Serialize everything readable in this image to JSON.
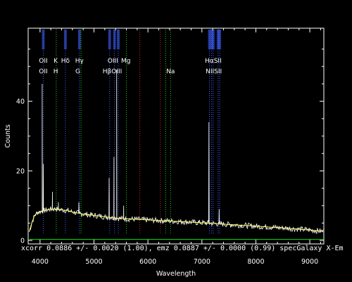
{
  "chart_data": {
    "type": "line",
    "xlabel": "Wavelength",
    "ylabel": "Counts",
    "xlim": [
      3780,
      9260
    ],
    "ylim": [
      -1,
      61
    ],
    "x_ticks": [
      4000,
      5000,
      6000,
      7000,
      8000,
      9000
    ],
    "y_ticks": [
      0,
      20,
      40
    ],
    "grid": false,
    "status_line": "xcorr  0.0886 +/- 0.0020 (1.00), emz  0.0887 +/- 0.0000 (0.99) specGalaxy X-Em",
    "colors": {
      "background": "#000000",
      "spectrum": "#ffffff",
      "model": "#ffff66",
      "noise": "#00cc00",
      "line_marker_blue": "#4060ff",
      "line_marker_green": "#22cc22",
      "line_marker_red": "#cc2222"
    },
    "line_labels_top": [
      {
        "label": "OII",
        "x": 4060
      },
      {
        "label": "K",
        "x": 4290
      },
      {
        "label": "Hδ",
        "x": 4470
      },
      {
        "label": "Hγ",
        "x": 4730
      },
      {
        "label": "OIII",
        "x": 5350
      },
      {
        "label": "Mg",
        "x": 5590
      },
      {
        "label": "HαSII",
        "x": 7210
      }
    ],
    "line_labels_bottom": [
      {
        "label": "OII",
        "x": 4060
      },
      {
        "label": "H",
        "x": 4290
      },
      {
        "label": "G",
        "x": 4700
      },
      {
        "label": "HβOIII",
        "x": 5340
      },
      {
        "label": "Na",
        "x": 6420
      },
      {
        "label": "NIISII",
        "x": 7220
      }
    ],
    "marker_lines": [
      {
        "x": 4060,
        "color": "blue"
      },
      {
        "x": 4300,
        "color": "green"
      },
      {
        "x": 4470,
        "color": "blue"
      },
      {
        "x": 4730,
        "color": "blue"
      },
      {
        "x": 4760,
        "color": "green"
      },
      {
        "x": 5290,
        "color": "blue"
      },
      {
        "x": 5380,
        "color": "blue"
      },
      {
        "x": 5450,
        "color": "blue"
      },
      {
        "x": 5600,
        "color": "green"
      },
      {
        "x": 5850,
        "color": "red"
      },
      {
        "x": 6230,
        "color": "red"
      },
      {
        "x": 6330,
        "color": "green"
      },
      {
        "x": 6420,
        "color": "green"
      },
      {
        "x": 7140,
        "color": "blue"
      },
      {
        "x": 7180,
        "color": "blue"
      },
      {
        "x": 7210,
        "color": "blue"
      },
      {
        "x": 7300,
        "color": "blue"
      },
      {
        "x": 7330,
        "color": "blue"
      }
    ],
    "continuum": {
      "x": [
        3800,
        3850,
        3900,
        3950,
        4000,
        4100,
        4200,
        4300,
        4400,
        4500,
        4600,
        4800,
        5000,
        5200,
        5500,
        6000,
        6500,
        7000,
        7500,
        8000,
        8500,
        9000,
        9250
      ],
      "y": [
        2.5,
        5.2,
        7.2,
        8.0,
        8.3,
        8.7,
        9.0,
        9.1,
        8.8,
        8.6,
        8.2,
        7.6,
        7.2,
        6.8,
        6.3,
        5.9,
        5.5,
        5.1,
        4.6,
        4.1,
        3.6,
        3.0,
        2.6
      ]
    },
    "emission_lines": [
      {
        "x": 4040,
        "y": 45
      },
      {
        "x": 4060,
        "y": 22
      },
      {
        "x": 4230,
        "y": 14
      },
      {
        "x": 4340,
        "y": 11
      },
      {
        "x": 4720,
        "y": 11
      },
      {
        "x": 5280,
        "y": 18
      },
      {
        "x": 5370,
        "y": 24
      },
      {
        "x": 5420,
        "y": 49
      },
      {
        "x": 5550,
        "y": 10
      },
      {
        "x": 7130,
        "y": 34
      },
      {
        "x": 7320,
        "y": 9
      }
    ],
    "noise_level": {
      "x": [
        3800,
        9250
      ],
      "y": [
        0.3,
        0.3
      ]
    }
  }
}
